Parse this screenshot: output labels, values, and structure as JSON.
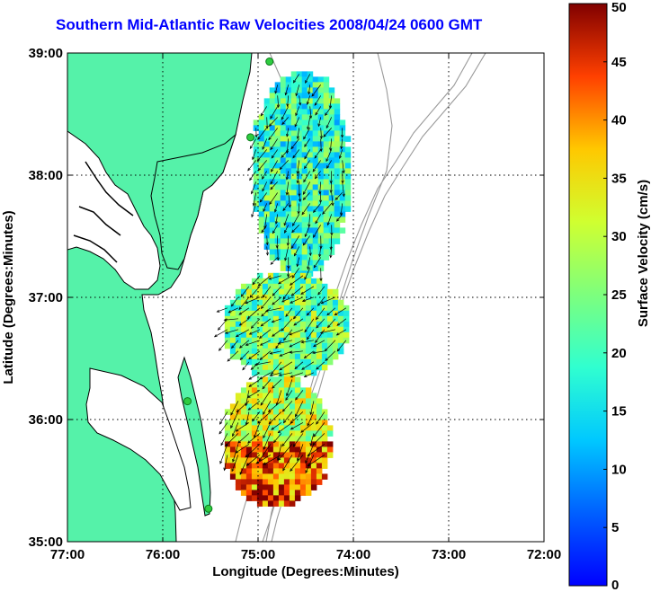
{
  "title": "Southern Mid-Atlantic Raw Velocities 2008/04/24 0600 GMT",
  "map": {
    "xlabel": "Longitude (Degrees:Minutes)",
    "ylabel": "Latitude (Degrees:Minutes)",
    "x_ticks": [
      "77:00",
      "76:00",
      "75:00",
      "74:00",
      "73:00",
      "72:00"
    ],
    "y_ticks": [
      "39:00",
      "38:00",
      "37:00",
      "36:00",
      "35:00"
    ],
    "colors": {
      "land": "#55f2a9",
      "ocean": "#ffffff",
      "coast": "#000000",
      "bathymetry": "#9a9a9a",
      "grid": "#000000",
      "station": "#2ecc40"
    }
  },
  "colorbar": {
    "label": "Surface Velocity (cm/s)",
    "min": 0,
    "max": 50,
    "ticks": [
      "0",
      "5",
      "10",
      "15",
      "20",
      "25",
      "30",
      "35",
      "40",
      "45",
      "50"
    ],
    "colormap": "jet"
  },
  "chart_data": {
    "type": "heatmap",
    "title": "Southern Mid-Atlantic Raw Velocities 2008/04/24 0600 GMT",
    "xlabel": "Longitude (Degrees:Minutes)",
    "ylabel": "Latitude (Degrees:Minutes)",
    "xlim": [
      -77,
      -72
    ],
    "ylim": [
      35,
      39
    ],
    "value_label": "Surface Velocity (cm/s)",
    "value_range": [
      0,
      50
    ],
    "regions": [
      {
        "lon": [
          -75.05,
          -74.05
        ],
        "lat": [
          37.2,
          38.85
        ],
        "typical_speed": 20
      },
      {
        "lon": [
          -75.35,
          -74.05
        ],
        "lat": [
          36.35,
          37.2
        ],
        "typical_speed": 24
      },
      {
        "lon": [
          -75.35,
          -74.25
        ],
        "lat": [
          35.3,
          36.35
        ],
        "typical_speed": 30
      }
    ],
    "stations": [
      {
        "lon": -74.88,
        "lat": 38.93
      },
      {
        "lon": -75.08,
        "lat": 38.31
      },
      {
        "lon": -75.74,
        "lat": 36.15
      },
      {
        "lon": -75.52,
        "lat": 35.27
      }
    ],
    "grid": true
  }
}
